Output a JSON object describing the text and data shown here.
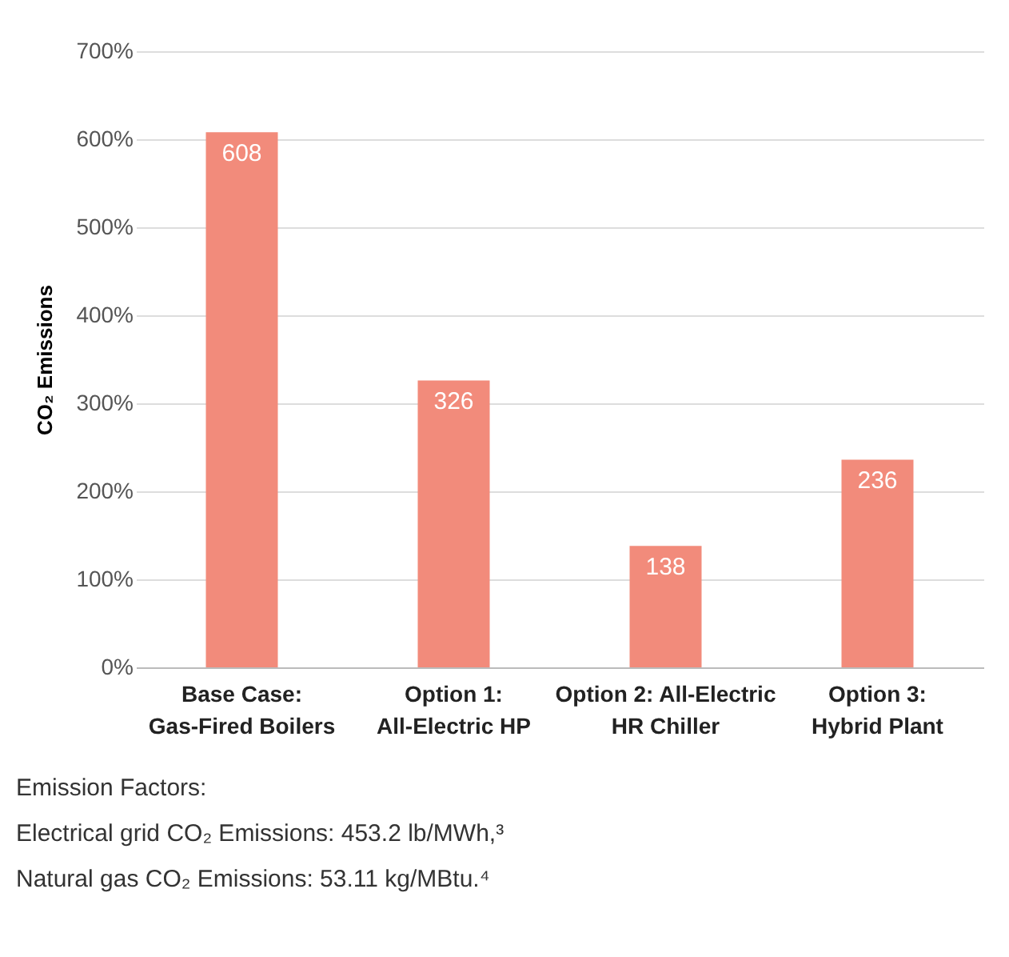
{
  "chart_data": {
    "type": "bar",
    "ylabel": "CO₂ Emissions",
    "categories": [
      "Base Case:\nGas-Fired Boilers",
      "Option 1:\nAll-Electric HP",
      "Option 2: All-Electric\nHR Chiller",
      "Option 3:\nHybrid Plant"
    ],
    "values": [
      608,
      326,
      138,
      236
    ],
    "color": "#f28b7b",
    "data_labels": true,
    "ylim": [
      0,
      700
    ],
    "yticks": [
      {
        "value": 0,
        "label": "0%"
      },
      {
        "value": 100,
        "label": "100%"
      },
      {
        "value": 200,
        "label": "200%"
      },
      {
        "value": 300,
        "label": "300%"
      },
      {
        "value": 400,
        "label": "400%"
      },
      {
        "value": 500,
        "label": "500%"
      },
      {
        "value": 600,
        "label": "600%"
      },
      {
        "value": 700,
        "label": "700%"
      }
    ],
    "grid": "y",
    "annotations": [
      "Emission Factors:",
      "Electrical grid CO₂ Emissions: 453.2 lb/MWh,³",
      "Natural gas CO₂ Emissions: 53.11 kg/MBtu.⁴"
    ]
  }
}
